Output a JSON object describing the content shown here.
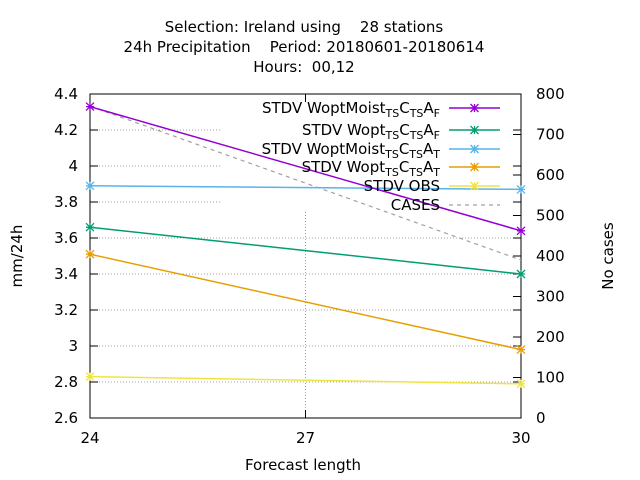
{
  "title_lines": [
    "Selection: Ireland using    28 stations",
    "24h Precipitation    Period: 20180601-20180614",
    "Hours:  00,12"
  ],
  "chart_data": {
    "type": "line",
    "x": [
      24,
      30
    ],
    "xlabel": "Forecast length",
    "ylabel": "mm/24h",
    "y2label": "No cases",
    "xlim": [
      24,
      30
    ],
    "ylim": [
      2.6,
      4.4
    ],
    "y2lim": [
      0,
      800
    ],
    "xticks": [
      "24",
      "27",
      "30"
    ],
    "yticks": [
      "2.6",
      "2.8",
      "3",
      "3.2",
      "3.4",
      "3.6",
      "3.8",
      "4",
      "4.2",
      "4.4"
    ],
    "y2ticks": [
      "0",
      "100",
      "200",
      "300",
      "400",
      "500",
      "600",
      "700",
      "800"
    ],
    "grid": true,
    "legend_position": "top-right",
    "series": [
      {
        "name": "STDV WoptMoist",
        "name_sub": [
          "TS",
          "TS",
          "F"
        ],
        "axis": "y",
        "color": "#9400d3",
        "values": [
          4.33,
          3.64
        ]
      },
      {
        "name": "STDV Wopt",
        "name_sub": [
          "TS",
          "TS",
          "F"
        ],
        "axis": "y",
        "color": "#009e73",
        "values": [
          3.66,
          3.4
        ]
      },
      {
        "name": "STDV WoptMoist",
        "name_sub": [
          "TS",
          "TS",
          "T"
        ],
        "axis": "y",
        "color": "#56b4e9",
        "values": [
          3.89,
          3.87
        ]
      },
      {
        "name": "STDV Wopt",
        "name_sub": [
          "TS",
          "TS",
          "T"
        ],
        "axis": "y",
        "color": "#e69f00",
        "values": [
          3.51,
          2.98
        ]
      },
      {
        "name": "STDV OBS",
        "axis": "y",
        "color": "#f0e442",
        "values": [
          2.83,
          2.79
        ]
      },
      {
        "name": "CASES",
        "axis": "y2",
        "color": "#a0a0a0",
        "dashed": true,
        "values": [
          770,
          390
        ]
      }
    ]
  }
}
